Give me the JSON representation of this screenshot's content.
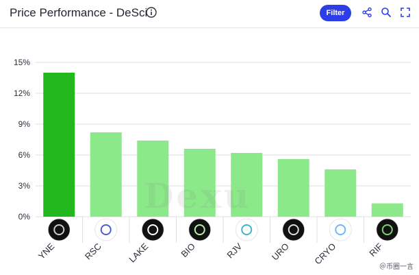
{
  "header": {
    "title": "Price Performance - DeSci",
    "filter_label": "Filter",
    "icons": [
      "info-icon",
      "share-icon",
      "search-icon",
      "expand-icon"
    ]
  },
  "colors": {
    "top_bar": "#22b81e",
    "bar": "#8ce98a",
    "grid": "#dcdde1",
    "axis_text": "#2a2e38",
    "accent": "#2d3ee8"
  },
  "chart_data": {
    "type": "bar",
    "categories": [
      "YNE",
      "RSC",
      "LAKE",
      "BIO",
      "RJV",
      "URO",
      "CRYO",
      "RIF"
    ],
    "values": [
      14.0,
      8.2,
      7.4,
      6.6,
      6.2,
      5.6,
      4.6,
      1.3
    ],
    "unit": "%",
    "ylim": [
      0,
      15
    ],
    "yticks": [
      "0%",
      "3%",
      "6%",
      "9%",
      "12%",
      "15%"
    ],
    "ytick_values": [
      0,
      3,
      6,
      9,
      12,
      15
    ],
    "grid": true,
    "highlight_index": 0,
    "token_icons": [
      "yne-token-icon",
      "rsc-token-icon",
      "lake-token-icon",
      "bio-token-icon",
      "rjv-token-icon",
      "uro-token-icon",
      "cryo-token-icon",
      "rif-token-icon"
    ]
  },
  "watermark": "Dexu",
  "credit": "＠币圈一言"
}
